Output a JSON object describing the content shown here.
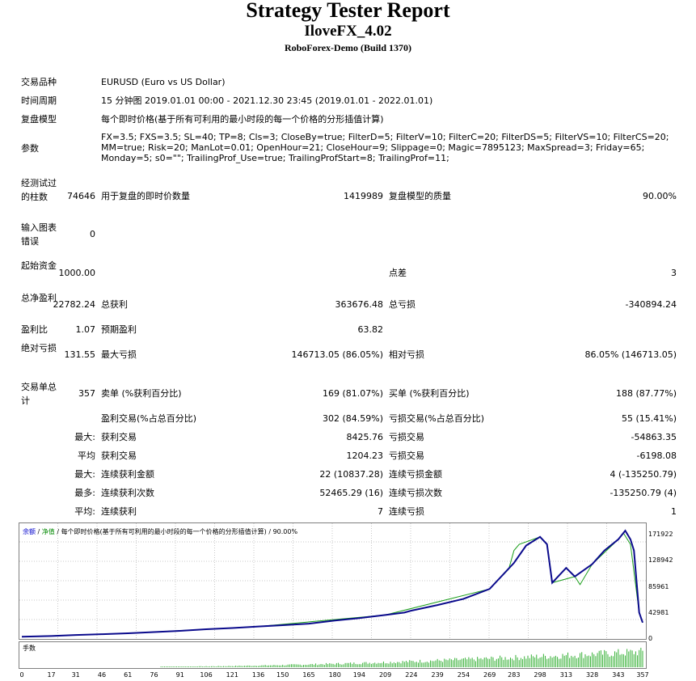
{
  "header": {
    "title": "Strategy Tester Report",
    "ea_name": "IloveFX_4.02",
    "server": "RoboForex-Demo (Build 1370)"
  },
  "info": {
    "symbol_label": "交易品种",
    "symbol_value": "EURUSD (Euro vs US Dollar)",
    "period_label": "时间周期",
    "period_value": "15 分钟图 2019.01.01 00:00 - 2021.12.30 23:45 (2019.01.01 - 2022.01.01)",
    "model_label": "复盘模型",
    "model_value": "每个即时价格(基于所有可利用的最小时段的每一个价格的分形插值计算)",
    "params_label": "参数",
    "params_line1": "FX=3.5; FXS=3.5; SL=40; TP=8; Cls=3; CloseBy=true; FilterD=5; FilterV=10; FilterC=20; FilterDS=5; FilterVS=10; FilterCS=20;",
    "params_line2": "MM=true; Risk=20; ManLot=0.01; OpenHour=21; CloseHour=9; Slippage=0; Magic=7895123; MaxSpread=3; Friday=65;",
    "params_line3": "Monday=5; s0=\"\"; TrailingProf_Use=true; TrailingProfStart=8; TrailingProf=11;"
  },
  "stats": {
    "bars_label": "经测试过的柱数",
    "bars_value": "74646",
    "ticks_label": "用于复盘的即时价数量",
    "ticks_value": "1419989",
    "quality_label": "复盘模型的质量",
    "quality_value": "90.00%",
    "mismatch_label": "输入图表错误",
    "mismatch_value": "0",
    "deposit_label": "起始资金",
    "deposit_value": "1000.00",
    "spread_label": "点差",
    "spread_value": "3",
    "netprofit_label": "总净盈利",
    "netprofit_value": "22782.24",
    "grossprofit_label": "总获利",
    "grossprofit_value": "363676.48",
    "grossloss_label": "总亏损",
    "grossloss_value": "-340894.24",
    "pf_label": "盈利比",
    "pf_value": "1.07",
    "payoff_label": "预期盈利",
    "payoff_value": "63.82",
    "absdd_label": "绝对亏损",
    "absdd_value": "131.55",
    "maxdd_label": "最大亏损",
    "maxdd_value": "146713.05 (86.05%)",
    "reldd_label": "相对亏损",
    "reldd_value": "86.05% (146713.05)",
    "trades_label": "交易单总计",
    "trades_value": "357",
    "short_label": "卖单 (%获利百分比)",
    "short_value": "169 (81.07%)",
    "long_label": "买单 (%获利百分比)",
    "long_value": "188 (87.77%)",
    "profit_trades_label": "盈利交易(%占总百分比)",
    "profit_trades_value": "302 (84.59%)",
    "loss_trades_label": "亏损交易(%占总百分比)",
    "loss_trades_value": "55 (15.41%)",
    "largest_prefix": "最大:",
    "largest_profit_label": "获利交易",
    "largest_profit_value": "8425.76",
    "largest_loss_label": "亏损交易",
    "largest_loss_value": "-54863.35",
    "avg_prefix": "平均",
    "avg_profit_label": "获利交易",
    "avg_profit_value": "1204.23",
    "avg_loss_label": "亏损交易",
    "avg_loss_value": "-6198.08",
    "max_prefix": "最大:",
    "max_cons_wins_label": "连续获利金额",
    "max_cons_wins_value": "22 (10837.28)",
    "max_cons_losses_label": "连续亏损金额",
    "max_cons_losses_value": "4 (-135250.79)",
    "most_prefix": "最多:",
    "most_cons_profit_label": "连续获利次数",
    "most_cons_profit_value": "52465.29 (16)",
    "most_cons_loss_label": "连续亏损次数",
    "most_cons_loss_value": "-135250.79 (4)",
    "avg2_prefix": "平均:",
    "avg_cons_wins_label": "连续获利",
    "avg_cons_wins_value": "7",
    "avg_cons_losses_label": "连续亏损",
    "avg_cons_losses_value": "1"
  },
  "chart_legend": {
    "balance": "余额",
    "sep1": " / ",
    "equity": "净值",
    "sep2": " / ",
    "rest": "每个即时价格(基于所有可利用的最小时段的每一个价格的分形插值计算) / 90.00%"
  },
  "lots_label": "手数",
  "colors": {
    "balance": "#0a0a8c",
    "equity": "#1a9e1a",
    "lots": "#35b035",
    "grid": "#c8c8c8",
    "legend_balance": "#0000cc",
    "legend_equity": "#008800"
  },
  "chart_data": {
    "type": "line",
    "y_ticks": [
      "171922",
      "128942",
      "85961",
      "42981",
      "0"
    ],
    "x_ticks": [
      "0",
      "17",
      "31",
      "46",
      "61",
      "76",
      "91",
      "106",
      "121",
      "136",
      "150",
      "165",
      "180",
      "194",
      "209",
      "224",
      "239",
      "254",
      "269",
      "283",
      "298",
      "313",
      "328",
      "343",
      "357"
    ],
    "ylim": [
      0,
      180000
    ],
    "xlim": [
      0,
      357
    ],
    "series": [
      {
        "name": "余额",
        "x": [
          0,
          17,
          31,
          46,
          61,
          76,
          91,
          106,
          121,
          136,
          150,
          165,
          180,
          194,
          209,
          220,
          224,
          239,
          254,
          269,
          283,
          290,
          298,
          302,
          305,
          313,
          318,
          328,
          335,
          343,
          345,
          347,
          350,
          352,
          355,
          357
        ],
        "y": [
          1000,
          2200,
          3800,
          5000,
          6500,
          8500,
          10500,
          13000,
          15000,
          17500,
          19500,
          22000,
          27000,
          31000,
          36000,
          40000,
          43000,
          52000,
          62000,
          78000,
          120000,
          148000,
          162000,
          150000,
          88000,
          112000,
          98000,
          118000,
          140000,
          158000,
          165000,
          172000,
          158000,
          140000,
          40000,
          23782
        ]
      },
      {
        "name": "净值",
        "x": [
          0,
          61,
          136,
          209,
          269,
          280,
          283,
          286,
          298,
          302,
          305,
          318,
          321,
          328,
          340,
          343,
          346,
          350,
          355,
          357
        ],
        "y": [
          1000,
          6500,
          17500,
          36000,
          78000,
          110000,
          140000,
          150000,
          162000,
          150000,
          88000,
          98000,
          85000,
          118000,
          150000,
          158000,
          168000,
          150000,
          40000,
          23782
        ]
      }
    ],
    "lots": {
      "name": "手数",
      "x_start": 80,
      "x_end": 357,
      "trend_start": 0.03,
      "trend_end": 0.85
    }
  }
}
